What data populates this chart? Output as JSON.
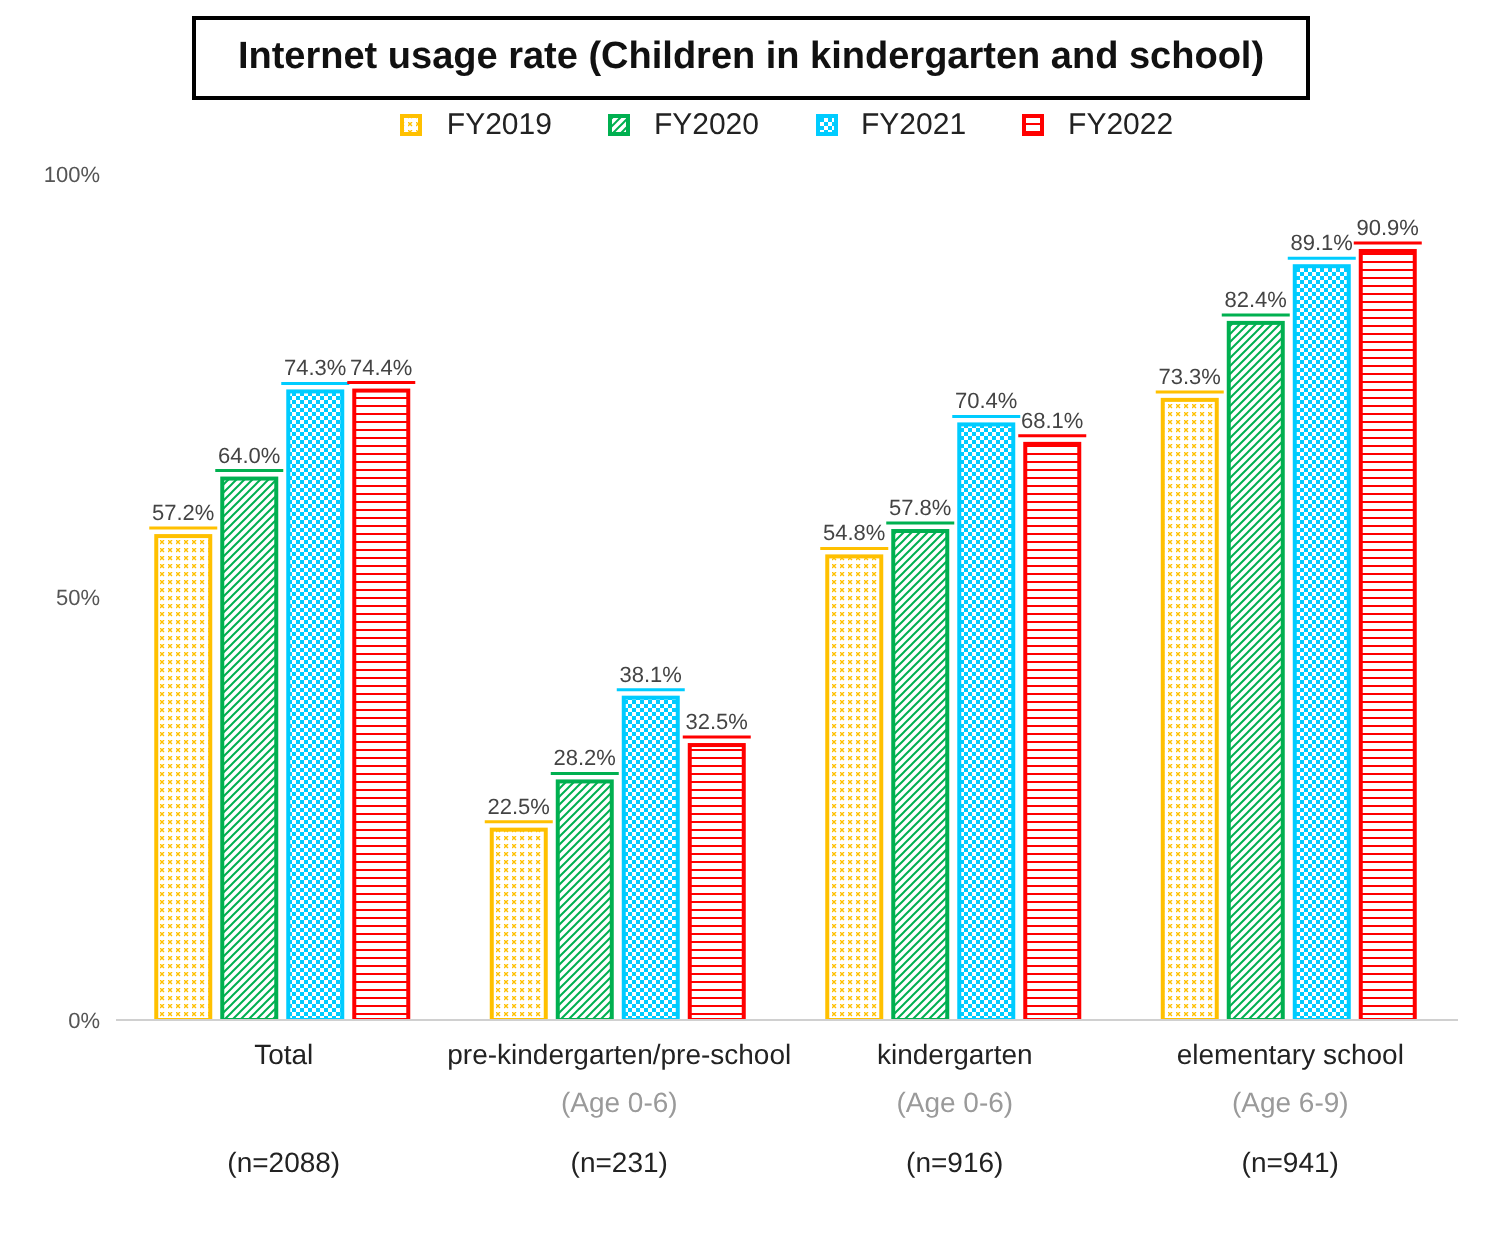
{
  "chart_data": {
    "type": "bar",
    "title": "Internet usage rate (Children in kindergarten and school)",
    "categories": [
      "Total\n\n(n=2088)",
      "pre-kindergarten/pre-school\n(Age 0-6)\n(n=231)",
      "kindergarten\n(Age 0-6)\n(n=916)",
      "elementary school\n(Age 6-9)\n(n=941)"
    ],
    "series": [
      {
        "name": "FY2019",
        "color": "#ffc000",
        "values": [
          57.2,
          22.5,
          54.8,
          73.3
        ],
        "value_labels": [
          "57.2%",
          "22.5%",
          "54.8%",
          "73.3%"
        ]
      },
      {
        "name": "FY2020",
        "color": "#00b050",
        "values": [
          64.0,
          28.2,
          57.8,
          82.4
        ],
        "value_labels": [
          "64.0%",
          "28.2%",
          "57.8%",
          "82.4%"
        ]
      },
      {
        "name": "FY2021",
        "color": "#00ccff",
        "values": [
          74.3,
          38.1,
          70.4,
          89.1
        ],
        "value_labels": [
          "74.3%",
          "38.1%",
          "70.4%",
          "89.1%"
        ]
      },
      {
        "name": "FY2022",
        "color": "#ff0000",
        "values": [
          74.4,
          32.5,
          68.1,
          90.9
        ],
        "value_labels": [
          "74.4%",
          "32.5%",
          "68.1%",
          "90.9%"
        ]
      }
    ],
    "ylim": [
      0,
      100
    ],
    "yticks": [
      {
        "value": 0,
        "label": "0%"
      },
      {
        "value": 50,
        "label": "50%"
      },
      {
        "value": 100,
        "label": "100%"
      }
    ],
    "grid": false,
    "legend": "top"
  }
}
